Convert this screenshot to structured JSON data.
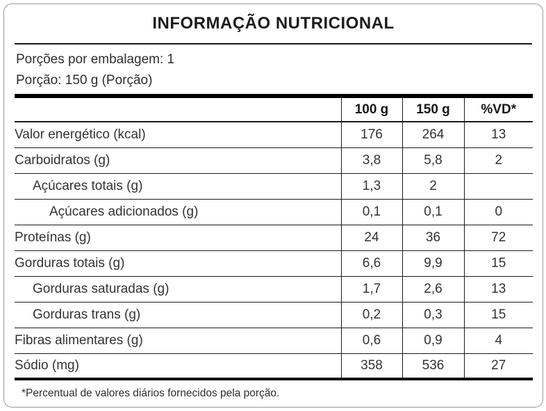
{
  "title": "INFORMAÇÃO NUTRICIONAL",
  "servings": {
    "per_package": "Porções por embalagem: 1",
    "portion": "Porção: 150 g (Porção)"
  },
  "table": {
    "col_headers": {
      "label": "",
      "per100": "100 g",
      "per150": "150 g",
      "vd": "%VD*"
    },
    "rows": [
      {
        "label": "Valor energético (kcal)",
        "indent": 0,
        "per100": "176",
        "per150": "264",
        "vd": "13"
      },
      {
        "label": "Carboidratos (g)",
        "indent": 0,
        "per100": "3,8",
        "per150": "5,8",
        "vd": "2"
      },
      {
        "label": "Açúcares totais (g)",
        "indent": 1,
        "per100": "1,3",
        "per150": "2",
        "vd": ""
      },
      {
        "label": "Açúcares adicionados (g)",
        "indent": 2,
        "per100": "0,1",
        "per150": "0,1",
        "vd": "0"
      },
      {
        "label": "Proteínas (g)",
        "indent": 0,
        "per100": "24",
        "per150": "36",
        "vd": "72"
      },
      {
        "label": "Gorduras totais (g)",
        "indent": 0,
        "per100": "6,6",
        "per150": "9,9",
        "vd": "15"
      },
      {
        "label": "Gorduras saturadas (g)",
        "indent": 1,
        "per100": "1,7",
        "per150": "2,6",
        "vd": "13"
      },
      {
        "label": "Gorduras trans (g)",
        "indent": 1,
        "per100": "0,2",
        "per150": "0,3",
        "vd": "15"
      },
      {
        "label": "Fibras alimentares (g)",
        "indent": 0,
        "per100": "0,6",
        "per150": "0,9",
        "vd": "4"
      },
      {
        "label": "Sódio (mg)",
        "indent": 0,
        "per100": "358",
        "per150": "536",
        "vd": "27"
      }
    ]
  },
  "footnote": "*Percentual de valores diários fornecidos pela porção.",
  "colors": {
    "title_text": "#1b1b1b",
    "body_text": "#333333",
    "rule_line": "#1a1a1a",
    "heavy_bar": "#000000",
    "card_border": "#9a9a9a",
    "background": "#ffffff"
  }
}
